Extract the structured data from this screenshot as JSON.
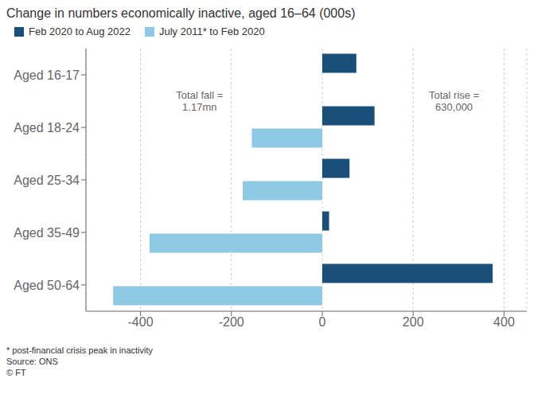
{
  "chart_data": {
    "type": "bar",
    "orientation": "horizontal",
    "title": "Change in numbers economically inactive, aged 16–64 (000s)",
    "categories": [
      "Aged 16-17",
      "Aged 18-24",
      "Aged 25-34",
      "Aged 35-49",
      "Aged 50-64"
    ],
    "series": [
      {
        "name": "Feb 2020 to Aug 2022",
        "color": "#1a4f7a",
        "values": [
          75,
          115,
          60,
          15,
          375
        ]
      },
      {
        "name": "July 2011* to Feb 2020",
        "color": "#8ecae6",
        "values": [
          0,
          -155,
          -175,
          -380,
          -460
        ]
      }
    ],
    "xlim": [
      -520,
      450
    ],
    "xticks": [
      -400,
      -200,
      0,
      200,
      400
    ],
    "grid": true,
    "legend": "upper left",
    "annotations": [
      {
        "text": "Total fall =\n1.17mn",
        "x": -270,
        "y": 0.5
      },
      {
        "text": "Total rise =\n630,000",
        "x": 290,
        "y": 0.5
      }
    ],
    "footnotes": [
      "* post-financial crisis peak in inactivity",
      "Source: ONS",
      "© FT"
    ]
  }
}
